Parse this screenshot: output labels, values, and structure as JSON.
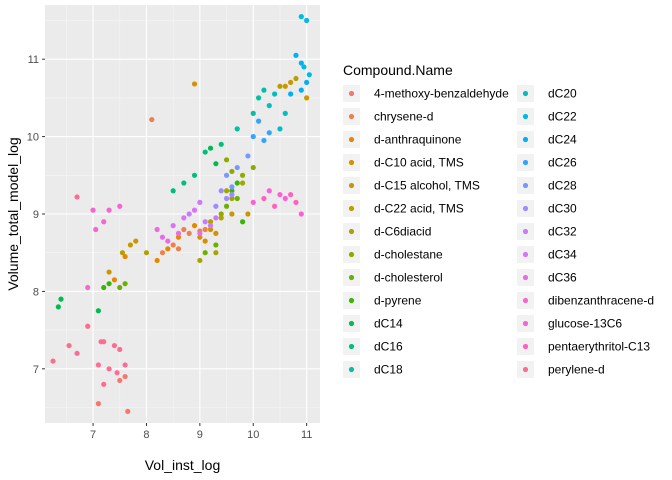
{
  "chart_data": {
    "type": "scatter",
    "xlabel": "Vol_inst_log",
    "ylabel": "Volume_total_model_log",
    "xlim": [
      6.1,
      11.25
    ],
    "ylim": [
      6.3,
      11.7
    ],
    "x_ticks": [
      7,
      8,
      9,
      10,
      11
    ],
    "y_ticks": [
      7,
      8,
      9,
      10,
      11
    ],
    "grid": true,
    "legend": {
      "title": "Compound.Name",
      "placement": "right",
      "columns": 2
    },
    "series": [
      {
        "name": "4-methoxy-benzaldehyde",
        "color": "#F8766D",
        "points": [
          [
            7.6,
            6.9
          ],
          [
            7.5,
            6.85
          ],
          [
            7.1,
            6.55
          ],
          [
            7.65,
            6.45
          ]
        ]
      },
      {
        "name": "chrysene-d",
        "color": "#F07F4C",
        "points": [
          [
            8.1,
            10.22
          ],
          [
            8.3,
            8.5
          ],
          [
            8.5,
            8.6
          ],
          [
            8.6,
            8.55
          ],
          [
            8.8,
            8.75
          ],
          [
            9.0,
            8.78
          ],
          [
            9.1,
            8.8
          ],
          [
            8.7,
            8.8
          ]
        ]
      },
      {
        "name": "d-anthraquinone",
        "color": "#E58700",
        "points": [
          [
            7.4,
            8.15
          ],
          [
            7.6,
            8.45
          ],
          [
            8.2,
            8.4
          ],
          [
            8.4,
            8.55
          ],
          [
            8.6,
            8.7
          ],
          [
            8.9,
            8.85
          ]
        ]
      },
      {
        "name": "d-C10 acid, TMS",
        "color": "#D89000",
        "points": [
          [
            8.9,
            10.68
          ],
          [
            9.0,
            8.7
          ],
          [
            9.2,
            8.8
          ],
          [
            9.3,
            8.75
          ],
          [
            9.1,
            8.65
          ]
        ]
      },
      {
        "name": "d-C15 alcohol, TMS",
        "color": "#C99800",
        "points": [
          [
            7.3,
            8.25
          ],
          [
            7.7,
            8.6
          ],
          [
            7.8,
            8.65
          ],
          [
            9.6,
            9.0
          ],
          [
            9.9,
            9.0
          ],
          [
            10.6,
            10.65
          ],
          [
            10.7,
            10.7
          ],
          [
            11.0,
            10.5
          ]
        ]
      },
      {
        "name": "d-C22 acid, TMS",
        "color": "#B79F00",
        "points": [
          [
            7.55,
            8.5
          ],
          [
            8.0,
            8.5
          ],
          [
            9.2,
            8.9
          ],
          [
            9.4,
            8.95
          ],
          [
            10.5,
            10.65
          ],
          [
            10.8,
            10.75
          ]
        ]
      },
      {
        "name": "d-C6diacid",
        "color": "#A3A500",
        "points": [
          [
            9.0,
            8.4
          ],
          [
            9.3,
            8.5
          ],
          [
            9.5,
            9.3
          ],
          [
            9.6,
            9.2
          ],
          [
            9.8,
            9.4
          ]
        ]
      },
      {
        "name": "d-cholestane",
        "color": "#8BAB00",
        "points": [
          [
            9.4,
            9.0
          ],
          [
            9.5,
            9.7
          ],
          [
            9.6,
            9.55
          ],
          [
            9.8,
            9.5
          ],
          [
            10.0,
            9.6
          ]
        ]
      },
      {
        "name": "d-cholesterol",
        "color": "#6BB100",
        "points": [
          [
            7.5,
            8.05
          ],
          [
            7.6,
            8.1
          ],
          [
            9.1,
            8.5
          ],
          [
            9.3,
            8.6
          ],
          [
            9.5,
            9.1
          ],
          [
            9.7,
            9.2
          ]
        ]
      },
      {
        "name": "d-pyrene",
        "color": "#39B600",
        "points": [
          [
            7.2,
            8.05
          ],
          [
            7.3,
            8.1
          ],
          [
            9.6,
            9.3
          ],
          [
            9.7,
            9.4
          ],
          [
            9.8,
            8.9
          ]
        ]
      },
      {
        "name": "dC14",
        "color": "#00BB4E",
        "points": [
          [
            6.35,
            7.8
          ],
          [
            6.4,
            7.9
          ],
          [
            7.1,
            7.75
          ],
          [
            9.2,
            9.85
          ],
          [
            9.3,
            9.65
          ]
        ]
      },
      {
        "name": "dC16",
        "color": "#00BF7D",
        "points": [
          [
            8.5,
            9.3
          ],
          [
            8.7,
            9.4
          ],
          [
            8.9,
            9.5
          ],
          [
            9.1,
            9.8
          ],
          [
            9.4,
            9.9
          ]
        ]
      },
      {
        "name": "dC18",
        "color": "#00C1A3",
        "points": [
          [
            9.7,
            10.1
          ],
          [
            10.0,
            10.3
          ],
          [
            10.1,
            10.5
          ],
          [
            10.2,
            10.6
          ]
        ]
      },
      {
        "name": "dC20",
        "color": "#00BFC4",
        "points": [
          [
            10.3,
            10.4
          ],
          [
            10.4,
            10.55
          ],
          [
            10.5,
            10.1
          ],
          [
            10.6,
            10.3
          ]
        ]
      },
      {
        "name": "dC22",
        "color": "#00BAE0",
        "points": [
          [
            10.9,
            11.55
          ],
          [
            11.0,
            11.5
          ],
          [
            10.95,
            10.9
          ],
          [
            11.05,
            10.8
          ]
        ]
      },
      {
        "name": "dC24",
        "color": "#00B0F6",
        "points": [
          [
            10.8,
            11.05
          ],
          [
            10.9,
            10.95
          ],
          [
            11.0,
            10.7
          ],
          [
            10.7,
            10.55
          ],
          [
            10.9,
            10.6
          ]
        ]
      },
      {
        "name": "dC26",
        "color": "#35A2FF",
        "points": [
          [
            10.0,
            10.0
          ],
          [
            10.2,
            9.95
          ],
          [
            10.3,
            10.05
          ],
          [
            10.1,
            10.2
          ]
        ]
      },
      {
        "name": "dC28",
        "color": "#7997FF",
        "points": [
          [
            9.5,
            9.5
          ],
          [
            9.7,
            9.6
          ],
          [
            9.9,
            9.75
          ],
          [
            9.6,
            9.35
          ]
        ]
      },
      {
        "name": "dC30",
        "color": "#9C8DFF",
        "points": [
          [
            9.3,
            9.1
          ],
          [
            9.5,
            9.2
          ],
          [
            9.6,
            9.25
          ],
          [
            9.4,
            9.3
          ]
        ]
      },
      {
        "name": "dC32",
        "color": "#C77CFF",
        "points": [
          [
            8.8,
            9.0
          ],
          [
            9.0,
            9.15
          ],
          [
            9.1,
            8.9
          ],
          [
            9.2,
            8.85
          ],
          [
            9.3,
            8.95
          ]
        ]
      },
      {
        "name": "dC34",
        "color": "#DC71FA",
        "points": [
          [
            8.5,
            8.85
          ],
          [
            8.7,
            8.95
          ],
          [
            8.9,
            9.05
          ],
          [
            9.0,
            8.75
          ]
        ]
      },
      {
        "name": "dC36",
        "color": "#EB6AE8",
        "points": [
          [
            8.3,
            8.7
          ],
          [
            8.4,
            8.65
          ],
          [
            8.6,
            8.75
          ],
          [
            8.2,
            8.8
          ]
        ]
      },
      {
        "name": "dibenzanthracene-d",
        "color": "#F566D0",
        "points": [
          [
            7.0,
            9.05
          ],
          [
            7.3,
            9.05
          ],
          [
            7.5,
            9.1
          ],
          [
            7.05,
            8.8
          ],
          [
            6.9,
            8.05
          ],
          [
            7.2,
            8.9
          ]
        ]
      },
      {
        "name": "glucose-13C6",
        "color": "#FB61D7",
        "points": [
          [
            10.0,
            9.15
          ],
          [
            10.3,
            9.3
          ],
          [
            10.5,
            9.25
          ],
          [
            10.6,
            9.2
          ],
          [
            10.9,
            9.0
          ]
        ]
      },
      {
        "name": "pentaerythritol-C13",
        "color": "#FF62BC",
        "points": [
          [
            10.2,
            9.2
          ],
          [
            10.4,
            9.1
          ],
          [
            10.7,
            9.25
          ],
          [
            10.8,
            9.15
          ]
        ]
      },
      {
        "name": "perylene-d",
        "color": "#FF6C91",
        "points": [
          [
            6.25,
            7.1
          ],
          [
            6.55,
            7.3
          ],
          [
            6.7,
            9.22
          ],
          [
            6.9,
            7.55
          ],
          [
            7.1,
            7.05
          ],
          [
            7.15,
            7.35
          ],
          [
            7.2,
            7.35
          ],
          [
            7.4,
            7.3
          ],
          [
            7.5,
            7.25
          ],
          [
            7.6,
            7.05
          ],
          [
            6.7,
            7.2
          ],
          [
            7.3,
            7.0
          ],
          [
            7.45,
            6.95
          ],
          [
            7.2,
            6.8
          ]
        ]
      }
    ]
  }
}
